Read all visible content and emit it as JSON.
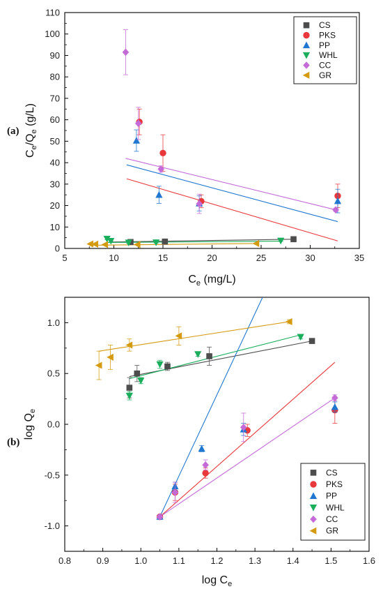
{
  "chart_data": [
    {
      "type": "scatter",
      "panel_label": "(a)",
      "xlabel_main": "C",
      "xlabel_sub": "e",
      "xlabel_tail": " (mg/L)",
      "ylabel_parts": [
        "C",
        "e",
        "/Q",
        "e",
        " (g/L)"
      ],
      "xlim": [
        5,
        35
      ],
      "ylim": [
        0,
        110
      ],
      "xticks": [
        "5",
        "10",
        "15",
        "20",
        "25",
        "30",
        "35"
      ],
      "yticks": [
        "0",
        "10",
        "20",
        "30",
        "40",
        "50",
        "60",
        "70",
        "80",
        "90",
        "100",
        "110"
      ],
      "legend_position": "top-right",
      "series": [
        {
          "name": "CS",
          "color": "#4d4d4d",
          "marker": "square",
          "x": [
            11.7,
            15.2,
            28.3
          ],
          "y": [
            3.0,
            3.2,
            4.3
          ],
          "err": [
            0.3,
            0.3,
            0.4
          ],
          "fit": [
            [
              9.8,
              3.0
            ],
            [
              28.3,
              4.3
            ]
          ]
        },
        {
          "name": "PKS",
          "color": "#e8383b",
          "marker": "circle",
          "x": [
            12.6,
            15.0,
            18.9,
            32.8
          ],
          "y": [
            59.0,
            44.5,
            22.0,
            24.5
          ],
          "err": [
            6.0,
            8.5,
            3.0,
            5.5
          ],
          "fit": [
            [
              11.3,
              32.5
            ],
            [
              32.8,
              3.5
            ]
          ]
        },
        {
          "name": "PP",
          "color": "#1f77d0",
          "marker": "triangle-up",
          "x": [
            12.3,
            14.6,
            18.7,
            32.8
          ],
          "y": [
            50.3,
            25.0,
            21.0,
            22.1
          ],
          "err": [
            5.0,
            4.0,
            3.5,
            5.5
          ],
          "fit": [
            [
              11.3,
              39.0
            ],
            [
              32.8,
              12.5
            ]
          ]
        },
        {
          "name": "WHL",
          "color": "#1aae5c",
          "marker": "triangle-down",
          "x": [
            9.3,
            9.7,
            11.5,
            14.3,
            27.0
          ],
          "y": [
            4.5,
            3.5,
            2.7,
            2.8,
            3.6
          ],
          "err": [
            0.4,
            0.3,
            0.3,
            0.3,
            0.3
          ],
          "fit": [
            [
              9.3,
              2.8
            ],
            [
              27.0,
              3.4
            ]
          ]
        },
        {
          "name": "CC",
          "color": "#c46bd8",
          "marker": "diamond",
          "x": [
            11.2,
            12.5,
            14.8,
            18.7,
            32.6
          ],
          "y": [
            91.5,
            58.3,
            37.0,
            20.8,
            18.0
          ],
          "err": [
            10.5,
            7.5,
            1.5,
            4.5,
            0.8
          ],
          "fit": [
            [
              11.2,
              42.0
            ],
            [
              32.6,
              18.0
            ]
          ]
        },
        {
          "name": "GR",
          "color": "#d49a10",
          "marker": "triangle-left",
          "x": [
            7.6,
            8.1,
            9.1,
            12.4,
            24.5
          ],
          "y": [
            2.1,
            2.0,
            1.8,
            1.8,
            2.3
          ],
          "err": [
            0.2,
            0.2,
            0.2,
            0.2,
            0.2
          ],
          "fit": [
            [
              7.6,
              1.5
            ],
            [
              24.5,
              2.3
            ]
          ]
        }
      ]
    },
    {
      "type": "scatter",
      "panel_label": "(b)",
      "xlabel_main": "log C",
      "xlabel_sub": "e",
      "xlabel_tail": "",
      "ylabel_parts": [
        "log Q",
        "e",
        "",
        "",
        ""
      ],
      "xlim": [
        0.8,
        1.6
      ],
      "ylim": [
        -1.25,
        1.25
      ],
      "xticks": [
        "0.8",
        "0.9",
        "1.0",
        "1.1",
        "1.2",
        "1.3",
        "1.4",
        "1.5",
        "1.6"
      ],
      "yticks": [
        "-1.0",
        "-0.5",
        "0.0",
        "0.5",
        "1.0"
      ],
      "legend_position": "bottom-right",
      "series": [
        {
          "name": "CS",
          "color": "#4d4d4d",
          "marker": "square",
          "x": [
            0.97,
            0.99,
            1.07,
            1.18,
            1.45
          ],
          "y": [
            0.36,
            0.5,
            0.57,
            0.67,
            0.82
          ],
          "err": [
            0.1,
            0.08,
            0.04,
            0.09,
            0.02
          ],
          "fit": [
            [
              0.97,
              0.47
            ],
            [
              1.45,
              0.82
            ]
          ]
        },
        {
          "name": "PKS",
          "color": "#e8383b",
          "marker": "circle",
          "x": [
            1.05,
            1.09,
            1.17,
            1.28,
            1.51
          ],
          "y": [
            -0.91,
            -0.67,
            -0.48,
            -0.06,
            0.14
          ],
          "err": [
            0.02,
            0.08,
            0.05,
            0.06,
            0.13
          ],
          "fit": [
            [
              1.05,
              -0.91
            ],
            [
              1.51,
              0.61
            ]
          ]
        },
        {
          "name": "PP",
          "color": "#1f77d0",
          "marker": "triangle-up",
          "x": [
            1.05,
            1.09,
            1.16,
            1.27,
            1.51
          ],
          "y": [
            -0.91,
            -0.61,
            -0.24,
            -0.05,
            0.17
          ],
          "err": [
            0.02,
            0.04,
            0.03,
            0.06,
            0.05
          ],
          "fit": [
            [
              1.05,
              -0.91
            ],
            [
              1.32,
              1.25
            ]
          ]
        },
        {
          "name": "WHL",
          "color": "#1aae5c",
          "marker": "triangle-down",
          "x": [
            0.97,
            1.0,
            1.05,
            1.15,
            1.42
          ],
          "y": [
            0.28,
            0.43,
            0.59,
            0.69,
            0.86
          ],
          "err": [
            0.04,
            0.03,
            0.04,
            0.02,
            0.02
          ],
          "fit": [
            [
              0.97,
              0.45
            ],
            [
              1.42,
              0.88
            ]
          ]
        },
        {
          "name": "CC",
          "color": "#c46bd8",
          "marker": "diamond",
          "x": [
            1.05,
            1.09,
            1.17,
            1.27,
            1.51
          ],
          "y": [
            -0.91,
            -0.67,
            -0.4,
            -0.03,
            0.26
          ],
          "err": [
            0.02,
            0.1,
            0.05,
            0.14,
            0.03
          ],
          "fit": [
            [
              1.05,
              -0.91
            ],
            [
              1.51,
              0.26
            ]
          ]
        },
        {
          "name": "GR",
          "color": "#d49a10",
          "marker": "triangle-left",
          "x": [
            0.89,
            0.92,
            0.97,
            1.1,
            1.39
          ],
          "y": [
            0.58,
            0.66,
            0.78,
            0.87,
            1.01
          ],
          "err": [
            0.14,
            0.12,
            0.06,
            0.09,
            0.02
          ],
          "fit": [
            [
              0.89,
              0.72
            ],
            [
              1.39,
              1.01
            ]
          ]
        }
      ]
    }
  ]
}
